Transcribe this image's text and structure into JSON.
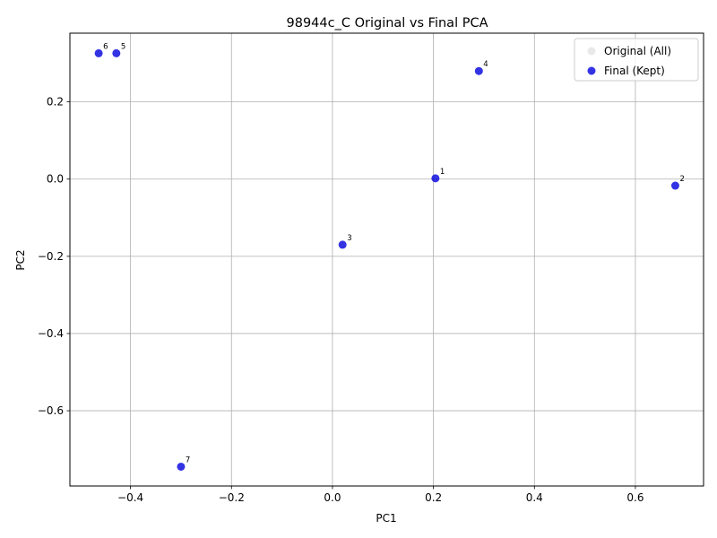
{
  "chart_data": {
    "type": "scatter",
    "title": "98944c_C Original vs Final PCA",
    "xlabel": "PC1",
    "ylabel": "PC2",
    "xlim": [
      -0.52,
      0.735
    ],
    "ylim": [
      -0.795,
      0.378
    ],
    "grid": true,
    "legend_position": "top-right",
    "x_ticks": [
      -0.4,
      -0.2,
      0.0,
      0.2,
      0.4,
      0.6
    ],
    "x_tick_labels": [
      "−0.4",
      "−0.2",
      "0.0",
      "0.2",
      "0.4",
      "0.6"
    ],
    "y_ticks": [
      -0.6,
      -0.4,
      -0.2,
      0.0,
      0.2
    ],
    "y_tick_labels": [
      "−0.6",
      "−0.4",
      "−0.2",
      "0.0",
      "0.2"
    ],
    "series": [
      {
        "name": "Original (All)",
        "color": "#d3d3d3",
        "points": []
      },
      {
        "name": "Final (Kept)",
        "color": "#0000dd",
        "points": [
          {
            "x": 0.204,
            "y": 0.002,
            "label": "1"
          },
          {
            "x": 0.679,
            "y": -0.017,
            "label": "2"
          },
          {
            "x": 0.02,
            "y": -0.17,
            "label": "3"
          },
          {
            "x": 0.29,
            "y": 0.28,
            "label": "4"
          },
          {
            "x": -0.428,
            "y": 0.326,
            "label": "5"
          },
          {
            "x": -0.463,
            "y": 0.326,
            "label": "6"
          },
          {
            "x": -0.3,
            "y": -0.745,
            "label": "7"
          }
        ]
      }
    ]
  }
}
